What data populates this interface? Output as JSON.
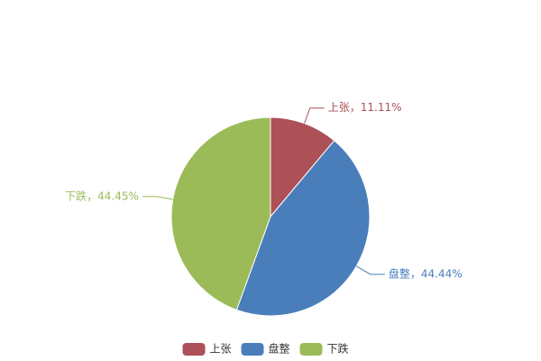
{
  "chart_data": {
    "type": "pie",
    "categories": [
      "上张",
      "盘整",
      "下跌"
    ],
    "values": [
      11.11,
      44.44,
      44.45
    ],
    "value_labels": [
      "上张，11.11%",
      "盘整，44.44%",
      "下跌，44.45%"
    ],
    "colors": [
      "#ad5058",
      "#4a7ebb",
      "#9bbb59"
    ],
    "legend": "bottom"
  }
}
